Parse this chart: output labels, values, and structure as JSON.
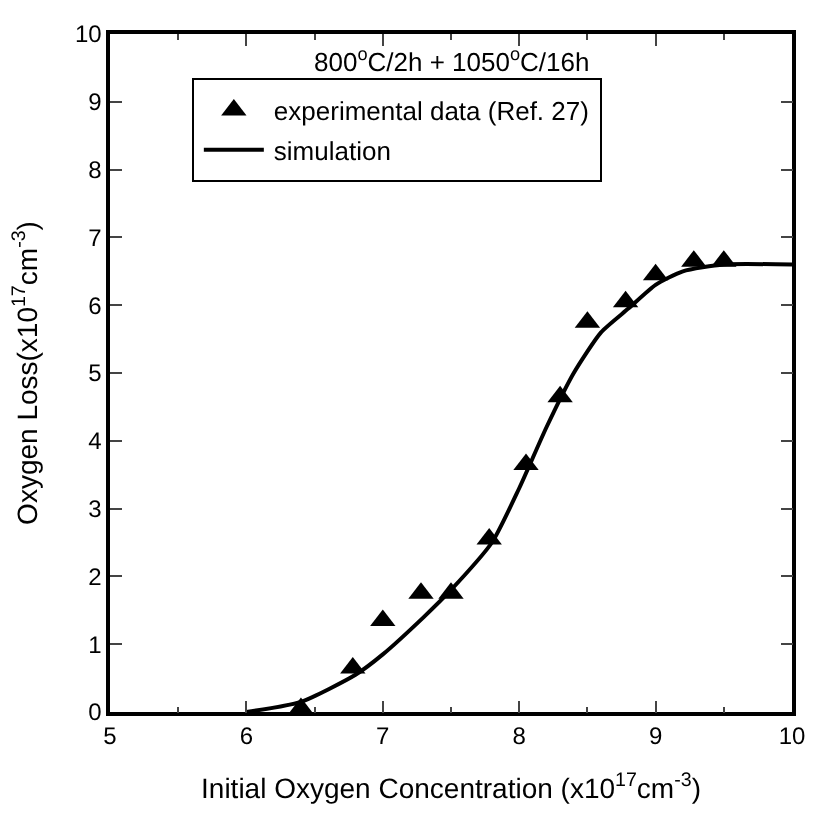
{
  "chart_data": {
    "type": "scatter",
    "title": "800$^{o}$C/2h + 1050$^{o}$C/16h",
    "xlabel": "Initial Oxygen Concentration (x10$^{17}$cm$^{-3}$)",
    "ylabel": "Oxygen Loss(x10$^{17}$cm$^{-3}$)",
    "xlim": [
      5,
      10
    ],
    "xticks": [
      5,
      6,
      7,
      8,
      9,
      10
    ],
    "ylim": [
      0,
      10
    ],
    "yticks": [
      0,
      1,
      2,
      3,
      4,
      5,
      6,
      7,
      8,
      9,
      10
    ],
    "legend": "top",
    "series": [
      {
        "name": "experimental data (Ref. 27)",
        "marker": "triangle",
        "color": "#000000",
        "x": [
          6.4,
          6.78,
          7.0,
          7.28,
          7.5,
          7.78,
          8.05,
          8.3,
          8.5,
          8.78,
          9.0,
          9.28,
          9.5
        ],
        "values": [
          0.05,
          0.65,
          1.35,
          1.75,
          1.75,
          2.55,
          3.65,
          4.65,
          5.75,
          6.05,
          6.45,
          6.65,
          6.65
        ]
      },
      {
        "name": "simulation",
        "type": "line",
        "marker": "none",
        "line_style": "solid",
        "color": "#000000",
        "x": [
          6.0,
          6.4,
          6.8,
          7.0,
          7.3,
          7.5,
          7.8,
          8.0,
          8.2,
          8.4,
          8.6,
          8.8,
          9.0,
          9.2,
          9.5,
          10.0
        ],
        "values": [
          0,
          0.15,
          0.55,
          0.85,
          1.4,
          1.8,
          2.5,
          3.3,
          4.2,
          5.0,
          5.6,
          5.95,
          6.3,
          6.5,
          6.6,
          6.6
        ]
      }
    ]
  }
}
